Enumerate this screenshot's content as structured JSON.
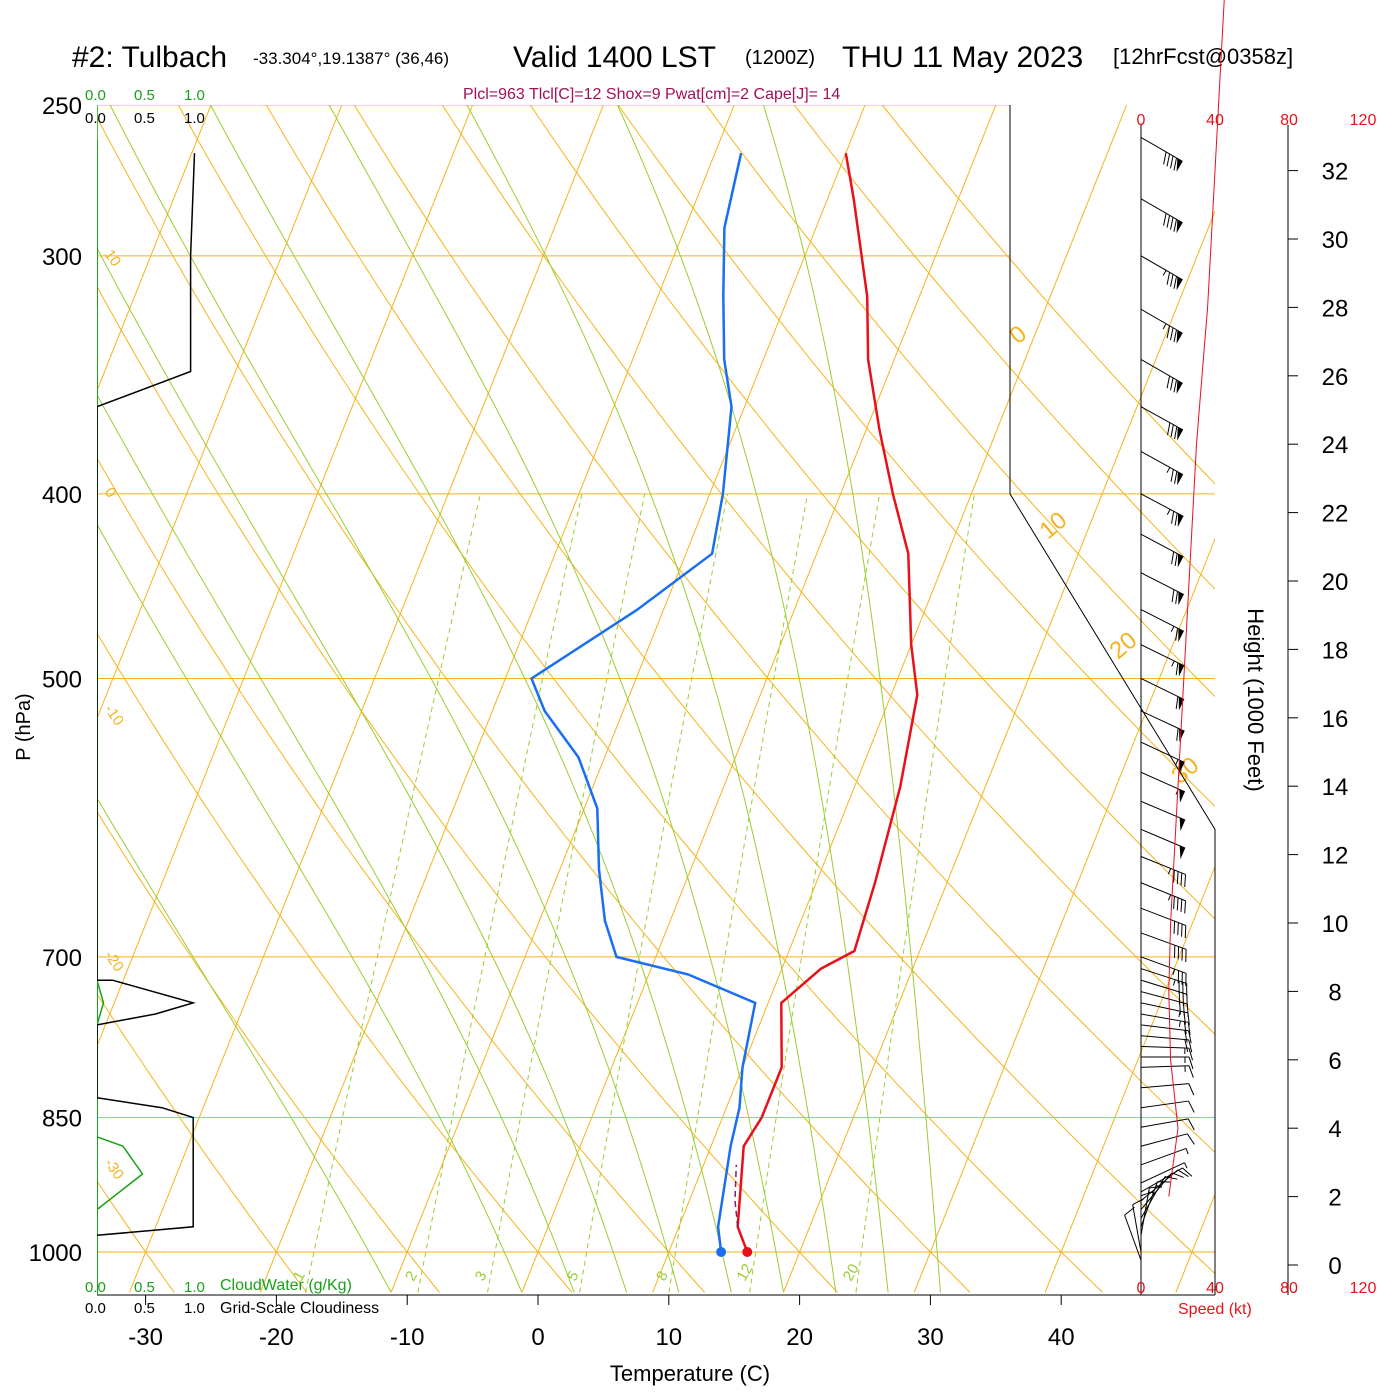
{
  "header": {
    "station": "#2: Tulbach",
    "coords": "-33.304°,19.1387° (36,46)",
    "valid": "Valid 1400 LST",
    "zulu": "(1200Z)",
    "date": "THU 11 May 2023",
    "forecast": "[12hrFcst@0358z]",
    "indices": "Plcl=963 Tlcl[C]=12 Shox=9 Pwat[cm]=2 Cape[J]= 14"
  },
  "colors": {
    "temperature": "#e8111a",
    "dewpoint": "#1a6ff0",
    "isobar_isotherm": "#f5b31c",
    "dry_adiabat": "#f5b31c",
    "moist_adiabat": "#9acd32",
    "mixing_ratio": "#9acd32",
    "cloud_water": "#19a019",
    "cloudiness": "#000000",
    "parcel": "#7a1f6e",
    "wind_speed": "#e8111a"
  },
  "left_panel": {
    "top_ticks_green": [
      "0.0",
      "0.5",
      "1.0"
    ],
    "top_ticks_black": [
      "0.0",
      "0.5",
      "1.0"
    ],
    "bottom_ticks_green": [
      "0.0",
      "0.5",
      "1.0"
    ],
    "bottom_ticks_black": [
      "0.0",
      "0.5",
      "1.0"
    ],
    "cloudwater_label": "CloudWater (g/Kg)",
    "cloudiness_label": "Grid-Scale Cloudiness"
  },
  "speed_panel": {
    "top_ticks": [
      "0",
      "40",
      "80",
      "120"
    ],
    "bottom_ticks": [
      "0",
      "40",
      "80",
      "120"
    ],
    "label": "Speed (kt)"
  },
  "height_axis": {
    "label": "Height (1000 Feet)",
    "ticks": [
      "0",
      "2",
      "4",
      "6",
      "8",
      "10",
      "12",
      "14",
      "16",
      "18",
      "20",
      "22",
      "24",
      "26",
      "28",
      "30",
      "32"
    ]
  },
  "isotherm_labels": [
    "10",
    "0",
    "-10",
    "-20",
    "-30"
  ],
  "theta_labels": [
    "0",
    "10",
    "20",
    "30"
  ],
  "mixing_ratio_labels": [
    "1",
    "2",
    "3",
    "5",
    "8",
    "12",
    "20"
  ],
  "chart_data": {
    "type": "line",
    "title": "",
    "xlabel": "Temperature (C)",
    "ylabel": "P (hPa)",
    "x_ticks": [
      "-30",
      "-20",
      "-10",
      "0",
      "10",
      "20",
      "30",
      "40"
    ],
    "y_ticks": [
      "250",
      "300",
      "400",
      "500",
      "700",
      "850",
      "1000"
    ],
    "xlim": [
      -33,
      45
    ],
    "ylim": [
      1050,
      250
    ],
    "y_scale": "log",
    "grid": true,
    "series": [
      {
        "key": "temperature",
        "points": [
          [
            16,
            1000
          ],
          [
            14.5,
            970
          ],
          [
            12.5,
            880
          ],
          [
            13,
            850
          ],
          [
            13,
            800
          ],
          [
            11,
            740
          ],
          [
            13,
            710
          ],
          [
            15,
            695
          ],
          [
            14.5,
            640
          ],
          [
            13.5,
            570
          ],
          [
            12,
            510
          ],
          [
            10,
            480
          ],
          [
            7,
            430
          ],
          [
            4,
            400
          ],
          [
            1,
            370
          ],
          [
            -2,
            340
          ],
          [
            -4,
            315
          ],
          [
            -8,
            280
          ],
          [
            -10,
            265
          ]
        ]
      },
      {
        "key": "dewpoint",
        "points": [
          [
            14,
            1000
          ],
          [
            13,
            970
          ],
          [
            11.5,
            880
          ],
          [
            11,
            840
          ],
          [
            10,
            800
          ],
          [
            9,
            740
          ],
          [
            3,
            715
          ],
          [
            -3,
            700
          ],
          [
            -5,
            670
          ],
          [
            -7,
            630
          ],
          [
            -9,
            585
          ],
          [
            -12,
            550
          ],
          [
            -16,
            520
          ],
          [
            -18,
            500
          ],
          [
            -12,
            460
          ],
          [
            -8,
            430
          ],
          [
            -9,
            400
          ],
          [
            -11,
            360
          ],
          [
            -13,
            340
          ],
          [
            -15,
            315
          ],
          [
            -17,
            290
          ],
          [
            -18,
            265
          ]
        ]
      },
      {
        "key": "parcel",
        "points": [
          [
            14.5,
            970
          ],
          [
            13.5,
            940
          ],
          [
            12.5,
            900
          ]
        ]
      }
    ],
    "surface_points": {
      "temperature": [
        16,
        1000
      ],
      "dewpoint": [
        14,
        1000
      ]
    },
    "cloud_water": {
      "points": [
        [
          0,
          1050
        ],
        [
          0,
          950
        ],
        [
          0.35,
          910
        ],
        [
          0.2,
          880
        ],
        [
          0,
          870
        ],
        [
          0,
          760
        ],
        [
          0.05,
          740
        ],
        [
          0,
          720
        ],
        [
          0,
          650
        ],
        [
          0,
          250
        ]
      ]
    },
    "cloudiness": {
      "points": [
        [
          0,
          980
        ],
        [
          0.74,
          970
        ],
        [
          0.74,
          850
        ],
        [
          0.5,
          840
        ],
        [
          0,
          830
        ],
        [
          0,
          760
        ],
        [
          0.45,
          750
        ],
        [
          0.74,
          740
        ],
        [
          0.12,
          720
        ],
        [
          0,
          720
        ],
        [
          0,
          360
        ],
        [
          0.72,
          345
        ],
        [
          0.72,
          300
        ],
        [
          0.75,
          265
        ]
      ]
    },
    "wind_speed": {
      "points": [
        [
          15,
          2
        ],
        [
          20,
          4
        ],
        [
          16,
          6
        ],
        [
          15,
          8
        ],
        [
          16,
          10
        ],
        [
          18,
          12
        ],
        [
          20,
          14
        ],
        [
          22,
          16
        ],
        [
          24,
          18
        ],
        [
          26,
          20
        ],
        [
          28,
          22
        ],
        [
          30,
          24
        ],
        [
          33,
          26
        ],
        [
          36,
          28
        ],
        [
          38,
          30
        ],
        [
          40,
          32
        ],
        [
          42,
          34
        ],
        [
          44,
          36
        ],
        [
          46,
          38
        ],
        [
          48,
          40
        ],
        [
          50,
          42
        ],
        [
          52,
          44
        ],
        [
          56,
          46
        ],
        [
          60,
          48
        ],
        [
          64,
          50
        ],
        [
          68,
          52
        ],
        [
          72,
          54
        ],
        [
          78,
          56
        ],
        [
          84,
          58
        ],
        [
          88,
          60
        ]
      ]
    },
    "wind_barbs": {
      "pressures": [
        1010,
        1000,
        990,
        980,
        970,
        960,
        950,
        940,
        930,
        920,
        900,
        880,
        860,
        840,
        820,
        800,
        790,
        780,
        770,
        760,
        750,
        740,
        730,
        720,
        710,
        700,
        680,
        660,
        640,
        620,
        600,
        580,
        560,
        540,
        520,
        500,
        480,
        460,
        440,
        420,
        400,
        380,
        360,
        340,
        320,
        300,
        280,
        260
      ],
      "directions_deg": [
        160,
        170,
        180,
        190,
        200,
        210,
        220,
        230,
        240,
        245,
        250,
        255,
        260,
        262,
        265,
        268,
        270,
        272,
        275,
        277,
        280,
        282,
        285,
        287,
        288,
        290,
        290,
        291,
        292,
        292,
        293,
        293,
        294,
        295,
        295,
        296,
        296,
        297,
        297,
        298,
        298,
        299,
        299,
        300,
        300,
        300,
        300,
        300
      ],
      "speeds_kt": [
        10,
        12,
        14,
        15,
        15,
        14,
        13,
        12,
        10,
        8,
        8,
        10,
        10,
        12,
        14,
        16,
        18,
        18,
        20,
        22,
        25,
        28,
        30,
        32,
        35,
        38,
        40,
        42,
        45,
        48,
        50,
        52,
        55,
        58,
        60,
        62,
        65,
        68,
        70,
        72,
        75,
        78,
        80,
        82,
        85,
        88,
        90,
        90
      ]
    }
  }
}
